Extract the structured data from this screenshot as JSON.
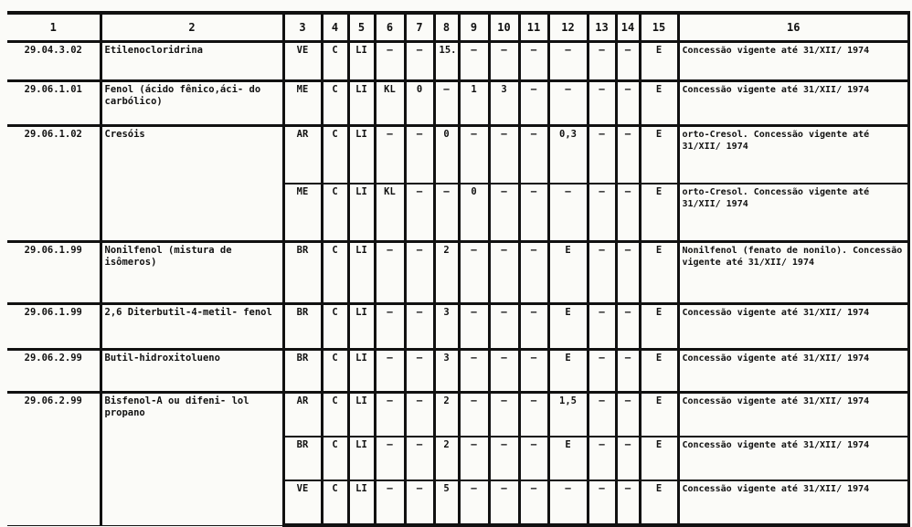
{
  "headers": [
    "1",
    "2",
    "3",
    "4",
    "5",
    "6",
    "7",
    "8",
    "9",
    "10",
    "11",
    "12",
    "13",
    "14",
    "15",
    "16"
  ],
  "rows": [
    {
      "code": "29.04.3.02",
      "name": "Etilenocloridrina",
      "subs": [
        [
          "VE",
          "C",
          "LI",
          "–",
          "–",
          "15.",
          "–",
          "–",
          "–",
          "–",
          "–",
          "–",
          "E",
          "Concessão vigente até 31/XII/ 1974"
        ]
      ]
    },
    {
      "code": "29.06.1.01",
      "name": "Fenol (ácido fênico,áci- do carbólico)",
      "subs": [
        [
          "ME",
          "C",
          "LI",
          "KL",
          "0",
          "–",
          "1",
          "3",
          "–",
          "–",
          "–",
          "–",
          "E",
          "Concessão vigente até 31/XII/ 1974"
        ]
      ]
    },
    {
      "code": "29.06.1.02",
      "name": "Cresóis",
      "subs": [
        [
          "AR",
          "C",
          "LI",
          "–",
          "–",
          "0",
          "–",
          "–",
          "–",
          "0,3",
          "–",
          "–",
          "E",
          "orto-Cresol. Concessão vigente até 31/XII/ 1974"
        ],
        [
          "ME",
          "C",
          "LI",
          "KL",
          "–",
          "–",
          "0",
          "–",
          "–",
          "–",
          "–",
          "–",
          "E",
          "orto-Cresol. Concessão vigente até 31/XII/ 1974"
        ]
      ]
    },
    {
      "code": "29.06.1.99",
      "name": "Nonilfenol (mistura de isômeros)",
      "subs": [
        [
          "BR",
          "C",
          "LI",
          "–",
          "–",
          "2",
          "–",
          "–",
          "–",
          "E",
          "–",
          "–",
          "E",
          "Nonilfenol (fenato de nonilo). Concessão vigente até 31/XII/ 1974"
        ]
      ]
    },
    {
      "code": "29.06.1.99",
      "name": "2,6 Diterbutil-4-metil- fenol",
      "subs": [
        [
          "BR",
          "C",
          "LI",
          "–",
          "–",
          "3",
          "–",
          "–",
          "–",
          "E",
          "–",
          "–",
          "E",
          "Concessão vigente até 31/XII/ 1974"
        ]
      ]
    },
    {
      "code": "29.06.2.99",
      "name": "Butil-hidroxitolueno",
      "subs": [
        [
          "BR",
          "C",
          "LI",
          "–",
          "–",
          "3",
          "–",
          "–",
          "–",
          "E",
          "–",
          "–",
          "E",
          "Concessão vigente até 31/XII/ 1974"
        ]
      ]
    },
    {
      "code": "29.06.2.99",
      "name": "Bisfenol-A ou difeni- lol propano",
      "subs": [
        [
          "AR",
          "C",
          "LI",
          "–",
          "–",
          "2",
          "–",
          "–",
          "–",
          "1,5",
          "–",
          "–",
          "E",
          "Concessão vigente até 31/XII/ 1974"
        ],
        [
          "BR",
          "C",
          "LI",
          "–",
          "–",
          "2",
          "–",
          "–",
          "–",
          "E",
          "–",
          "–",
          "E",
          "Concessão vigente até 31/XII/ 1974"
        ],
        [
          "VE",
          "C",
          "LI",
          "–",
          "–",
          "5",
          "–",
          "–",
          "–",
          "–",
          "–",
          "–",
          "E",
          "Concessão vigente até 31/XII/ 1974"
        ]
      ]
    }
  ]
}
